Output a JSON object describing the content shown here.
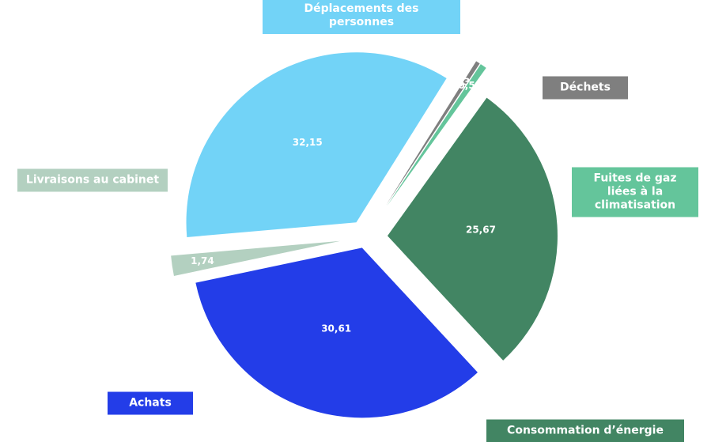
{
  "chart_data": {
    "type": "pie",
    "categories": [
      "Déplacements des personnes",
      "Déchets",
      "Fuites de gaz liées à la climatisation",
      "Consommation d’énergie",
      "Achats",
      "Livraisons au cabinet"
    ],
    "values": [
      32.15,
      0.36,
      0.56,
      25.67,
      30.61,
      1.74
    ],
    "value_labels": [
      "32,15",
      "0,36",
      "0,56",
      "25,67",
      "30,61",
      "1,74"
    ],
    "colors": [
      "#72d3f7",
      "#7f7f7f",
      "#64c59b",
      "#428563",
      "#233de8",
      "#b3d0c0"
    ]
  }
}
